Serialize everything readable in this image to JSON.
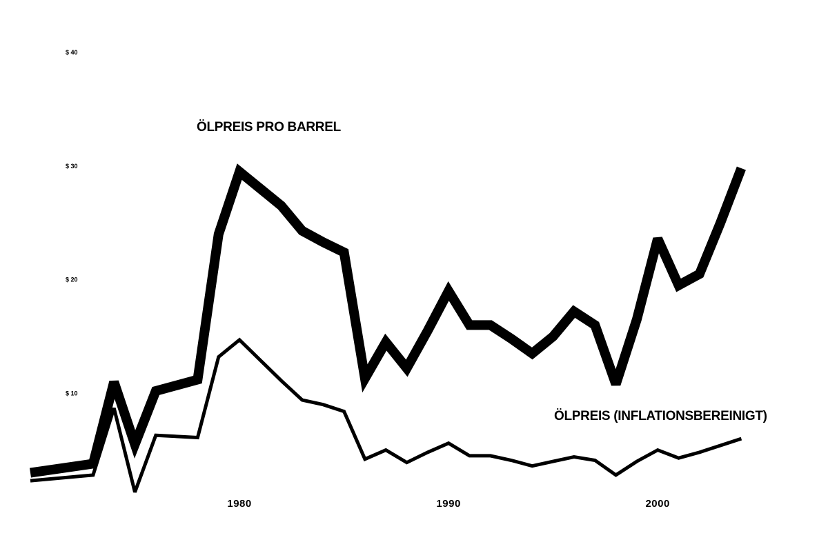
{
  "chart_data": {
    "type": "line",
    "title": "",
    "xlabel": "",
    "ylabel": "",
    "xlim": [
      1970,
      2006
    ],
    "ylim": [
      0,
      40
    ],
    "grid": false,
    "legend": "none",
    "y_ticks": [
      {
        "value": 10,
        "label": "$ 10"
      },
      {
        "value": 20,
        "label": "$ 20"
      },
      {
        "value": 30,
        "label": "$ 30"
      },
      {
        "value": 40,
        "label": "$ 40"
      }
    ],
    "x_ticks": [
      {
        "value": 1980,
        "label": "1980"
      },
      {
        "value": 1990,
        "label": "1990"
      },
      {
        "value": 2000,
        "label": "2000"
      }
    ],
    "series": [
      {
        "name": "ÖLPREIS PRO BARREL",
        "color": "#000000",
        "weight": "thick",
        "points": [
          [
            1970,
            3.0
          ],
          [
            1973,
            3.8
          ],
          [
            1974,
            11.0
          ],
          [
            1975,
            5.5
          ],
          [
            1976,
            10.2
          ],
          [
            1977,
            10.7
          ],
          [
            1978,
            11.2
          ],
          [
            1979,
            24.0
          ],
          [
            1980,
            29.5
          ],
          [
            1981,
            28.0
          ],
          [
            1982,
            26.5
          ],
          [
            1983,
            24.3
          ],
          [
            1984,
            23.3
          ],
          [
            1985,
            22.4
          ],
          [
            1986,
            11.3
          ],
          [
            1987,
            14.5
          ],
          [
            1988,
            12.2
          ],
          [
            1989,
            15.5
          ],
          [
            1990,
            19.0
          ],
          [
            1991,
            16.0
          ],
          [
            1992,
            16.0
          ],
          [
            1993,
            14.8
          ],
          [
            1994,
            13.5
          ],
          [
            1995,
            15.0
          ],
          [
            1996,
            17.2
          ],
          [
            1997,
            16.0
          ],
          [
            1998,
            10.8
          ],
          [
            1999,
            16.5
          ],
          [
            2000,
            23.6
          ],
          [
            2001,
            19.5
          ],
          [
            2002,
            20.5
          ],
          [
            2003,
            25.0
          ],
          [
            2004,
            29.8
          ]
        ]
      },
      {
        "name": "ÖLPREIS (INFLATIONSBEREINIGT)",
        "color": "#000000",
        "weight": "thin",
        "points": [
          [
            1970,
            2.3
          ],
          [
            1973,
            2.8
          ],
          [
            1974,
            8.7
          ],
          [
            1975,
            1.3
          ],
          [
            1976,
            6.3
          ],
          [
            1978,
            6.1
          ],
          [
            1979,
            13.2
          ],
          [
            1980,
            14.7
          ],
          [
            1981,
            12.9
          ],
          [
            1982,
            11.1
          ],
          [
            1983,
            9.4
          ],
          [
            1984,
            9.0
          ],
          [
            1985,
            8.4
          ],
          [
            1986,
            4.2
          ],
          [
            1987,
            5.0
          ],
          [
            1988,
            3.9
          ],
          [
            1989,
            4.8
          ],
          [
            1990,
            5.6
          ],
          [
            1991,
            4.5
          ],
          [
            1992,
            4.5
          ],
          [
            1993,
            4.1
          ],
          [
            1994,
            3.6
          ],
          [
            1995,
            4.0
          ],
          [
            1996,
            4.4
          ],
          [
            1997,
            4.1
          ],
          [
            1998,
            2.8
          ],
          [
            1999,
            4.0
          ],
          [
            2000,
            5.0
          ],
          [
            2001,
            4.3
          ],
          [
            2002,
            4.8
          ],
          [
            2003,
            5.4
          ],
          [
            2004,
            6.0
          ]
        ]
      }
    ],
    "annotations": [
      {
        "text": "ÖLPREIS PRO BARREL",
        "series": 0
      },
      {
        "text": "ÖLPREIS (INFLATIONSBEREINIGT)",
        "series": 1
      }
    ]
  }
}
